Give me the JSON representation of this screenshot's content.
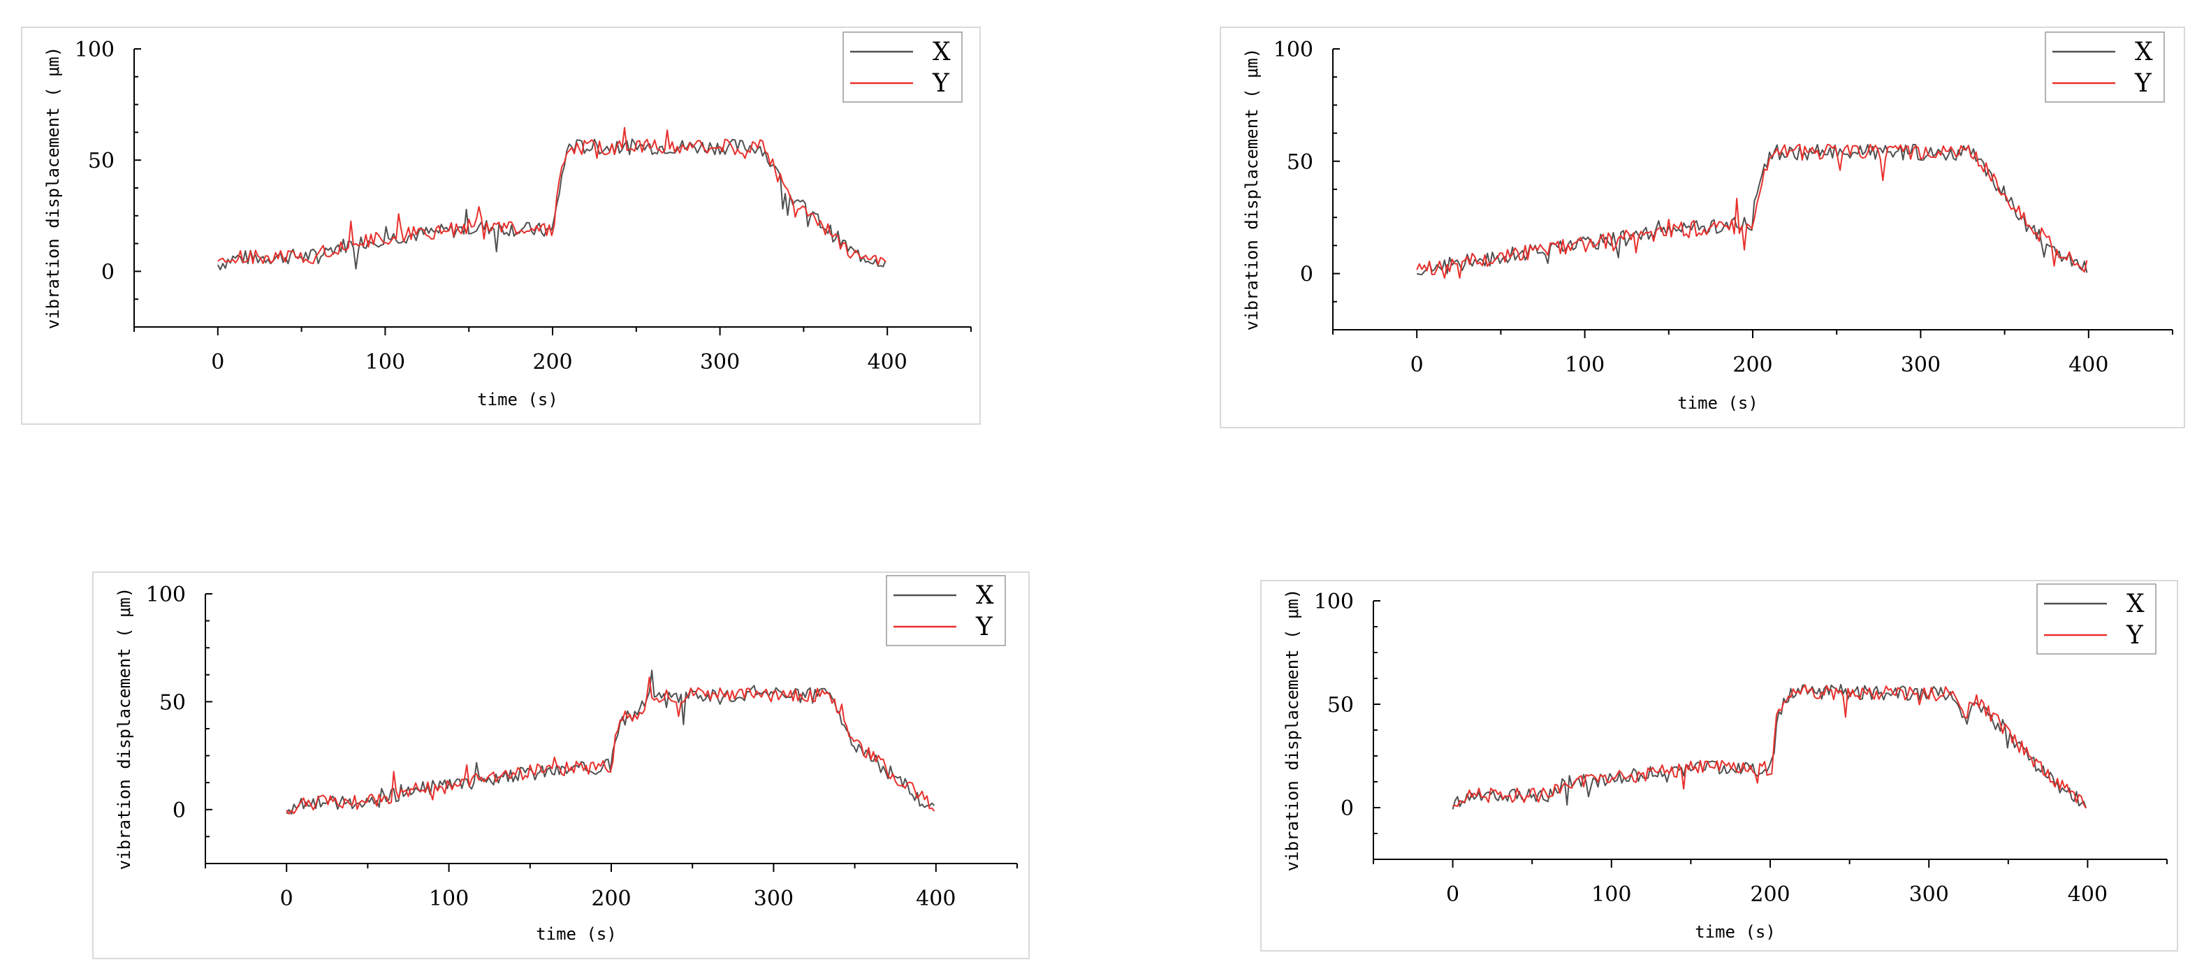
{
  "figure": {
    "panel_ids": [
      "p0",
      "p1",
      "p2",
      "p3"
    ]
  },
  "chart_data": [
    {
      "type": "line",
      "xlabel": "time (s)",
      "ylabel": "vibration displacement ( μm)",
      "xlim": [
        -50,
        450
      ],
      "ylim": [
        -25,
        100
      ],
      "xticks": [
        0,
        100,
        200,
        300,
        400
      ],
      "yticks": [
        0,
        50,
        100
      ],
      "legend": "top-right",
      "series": [
        {
          "name": "X",
          "color": "#505050",
          "x": [
            0,
            10,
            60,
            70,
            100,
            160,
            200,
            206,
            210,
            215,
            325,
            340,
            360,
            380,
            400
          ],
          "values": [
            3,
            6,
            7,
            11,
            15,
            20,
            18,
            45,
            57,
            56,
            56,
            35,
            22,
            8,
            4
          ]
        },
        {
          "name": "Y",
          "color": "#e8302c",
          "x": [
            0,
            10,
            60,
            70,
            100,
            160,
            200,
            206,
            210,
            215,
            325,
            340,
            360,
            380,
            400
          ],
          "values": [
            3,
            6,
            7,
            11,
            15,
            21,
            18,
            48,
            57,
            56,
            56,
            36,
            21,
            8,
            4
          ]
        }
      ]
    },
    {
      "type": "line",
      "xlabel": "time (s)",
      "ylabel": "vibration displacement ( μm)",
      "xlim": [
        -50,
        450
      ],
      "ylim": [
        -25,
        100
      ],
      "xticks": [
        0,
        100,
        200,
        300,
        400
      ],
      "yticks": [
        0,
        50,
        100
      ],
      "legend": "top-right",
      "series": [
        {
          "name": "X",
          "color": "#505050",
          "x": [
            0,
            20,
            70,
            100,
            160,
            200,
            205,
            210,
            215,
            330,
            345,
            365,
            385,
            400
          ],
          "values": [
            1,
            4,
            10,
            13,
            20,
            22,
            45,
            52,
            54,
            54,
            40,
            20,
            8,
            2
          ]
        },
        {
          "name": "Y",
          "color": "#e8302c",
          "x": [
            0,
            20,
            70,
            100,
            160,
            200,
            205,
            210,
            215,
            330,
            345,
            365,
            385,
            400
          ],
          "values": [
            1,
            4,
            10,
            13,
            20,
            21,
            40,
            50,
            54,
            54,
            41,
            21,
            9,
            2
          ]
        }
      ]
    },
    {
      "type": "line",
      "xlabel": "time (s)",
      "ylabel": "vibration displacement ( μm)",
      "xlim": [
        -50,
        450
      ],
      "ylim": [
        -25,
        100
      ],
      "xticks": [
        0,
        100,
        200,
        300,
        400
      ],
      "yticks": [
        0,
        50,
        100
      ],
      "legend": "top-right",
      "series": [
        {
          "name": "X",
          "color": "#505050",
          "x": [
            0,
            15,
            60,
            70,
            100,
            160,
            200,
            205,
            215,
            225,
            335,
            350,
            370,
            390,
            400
          ],
          "values": [
            0,
            3,
            4,
            8,
            11,
            18,
            20,
            40,
            45,
            53,
            53,
            30,
            18,
            5,
            0
          ]
        },
        {
          "name": "Y",
          "color": "#e8302c",
          "x": [
            0,
            15,
            60,
            70,
            100,
            160,
            200,
            205,
            215,
            225,
            335,
            350,
            370,
            390,
            400
          ],
          "values": [
            0,
            3,
            4,
            9,
            11,
            19,
            20,
            42,
            44,
            53,
            53,
            31,
            19,
            6,
            0
          ]
        }
      ]
    },
    {
      "type": "line",
      "xlabel": "time (s)",
      "ylabel": "vibration displacement ( μm)",
      "xlim": [
        -50,
        450
      ],
      "ylim": [
        -25,
        100
      ],
      "xticks": [
        0,
        100,
        200,
        300,
        400
      ],
      "yticks": [
        0,
        50,
        100
      ],
      "legend": "top-right",
      "series": [
        {
          "name": "X",
          "color": "#505050",
          "x": [
            0,
            10,
            60,
            70,
            100,
            160,
            200,
            205,
            212,
            215,
            315,
            322,
            330,
            350,
            370,
            390,
            400
          ],
          "values": [
            2,
            6,
            6,
            12,
            14,
            20,
            18,
            45,
            55,
            56,
            55,
            40,
            50,
            35,
            18,
            6,
            2
          ]
        },
        {
          "name": "Y",
          "color": "#e8302c",
          "x": [
            0,
            10,
            60,
            70,
            100,
            160,
            200,
            205,
            212,
            215,
            315,
            322,
            330,
            350,
            370,
            390,
            400
          ],
          "values": [
            2,
            6,
            6,
            12,
            14,
            20,
            19,
            48,
            56,
            56,
            55,
            45,
            52,
            36,
            19,
            7,
            2
          ]
        }
      ]
    }
  ]
}
